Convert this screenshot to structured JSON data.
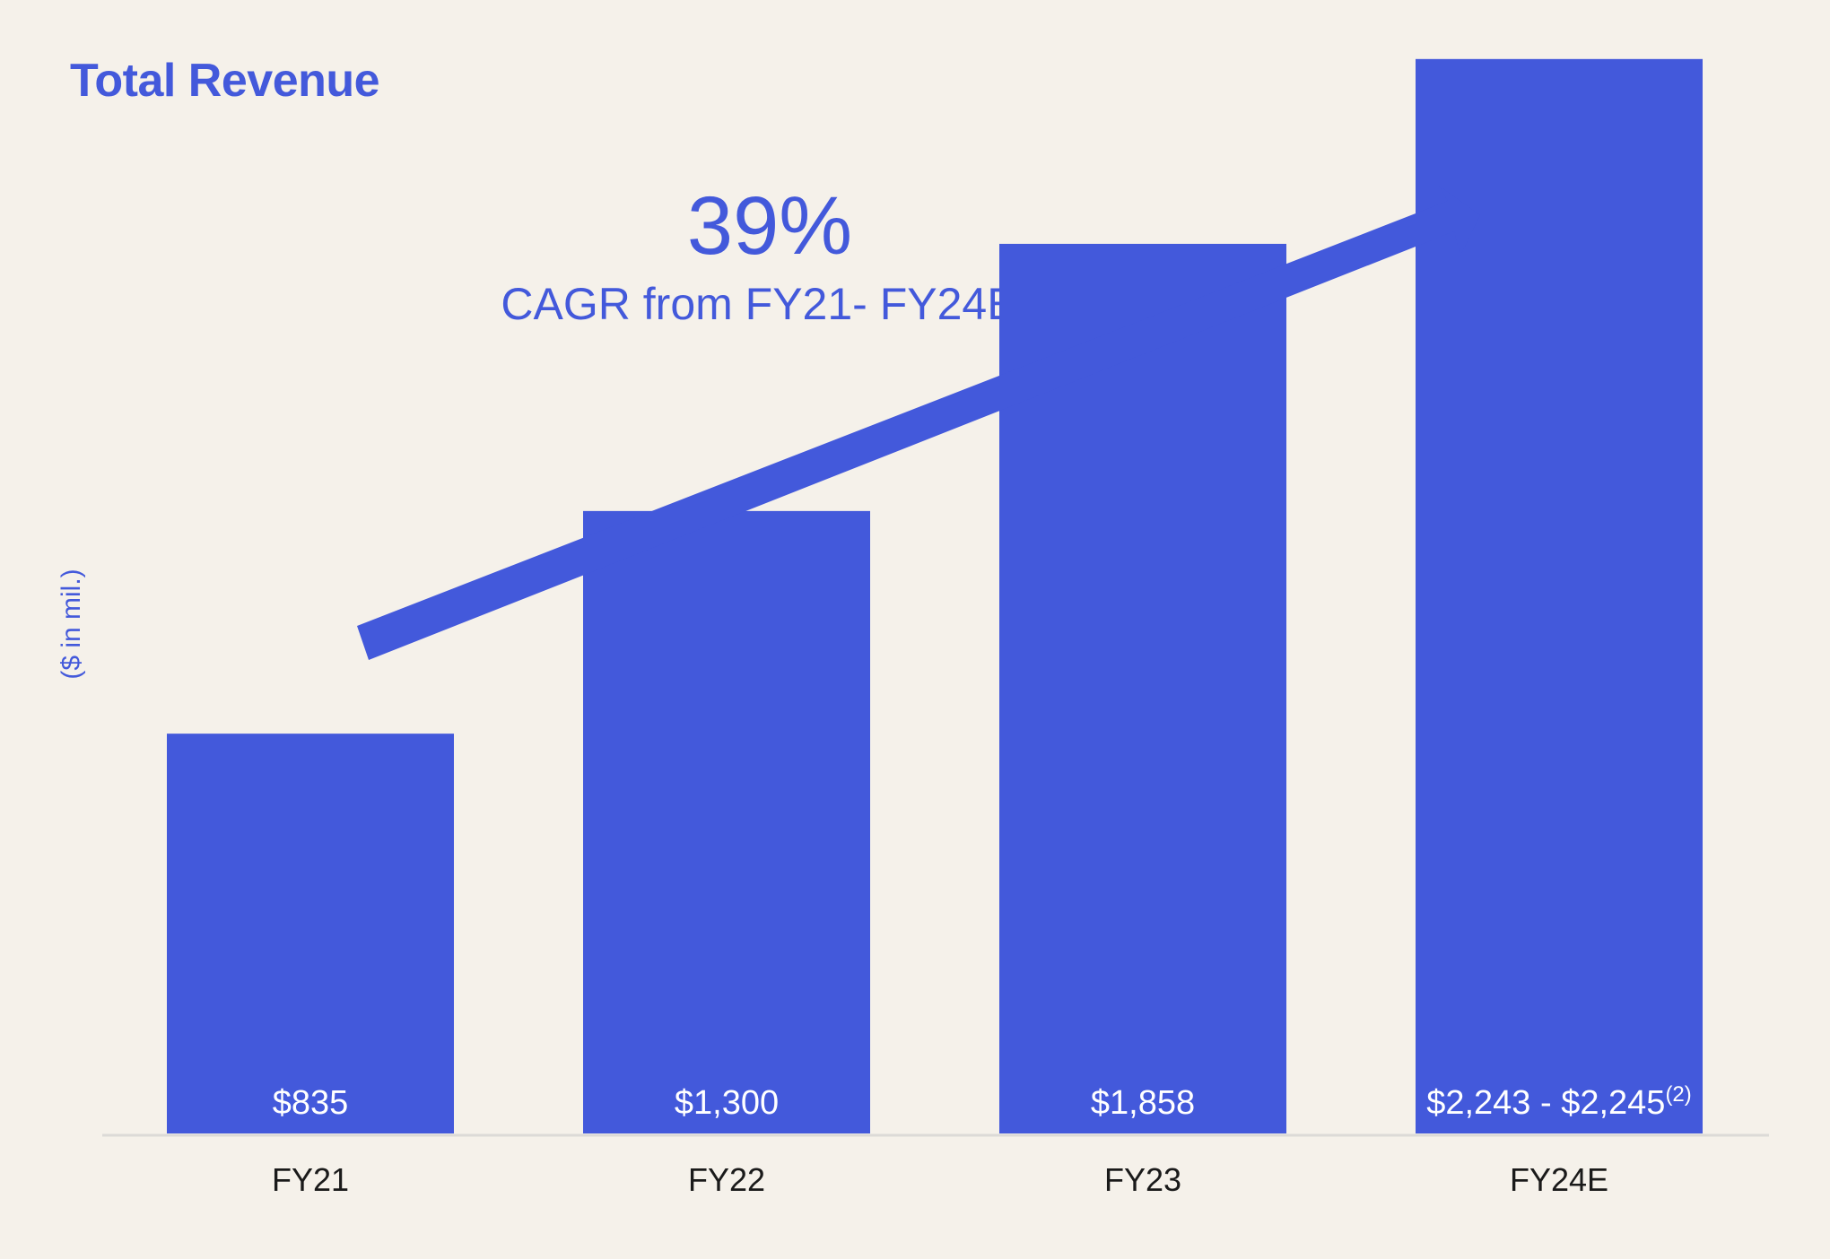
{
  "chart_data": {
    "type": "bar",
    "title": "Total Revenue",
    "ylabel": "($ in mil.)",
    "xlabel": "",
    "categories": [
      "FY21",
      "FY22",
      "FY23",
      "FY24E"
    ],
    "values": [
      835,
      1300,
      1858,
      2244
    ],
    "data_labels": [
      "$835",
      "$1,300",
      "$1,858",
      "$2,243 - $2,245"
    ],
    "data_label_footnote": "(2)",
    "ylim": [
      0,
      2180
    ],
    "grid": false,
    "bar_color": "#4359db",
    "annotation": {
      "value": "39%",
      "label": "CAGR from FY21- FY24E",
      "arrow": "up-right"
    }
  }
}
